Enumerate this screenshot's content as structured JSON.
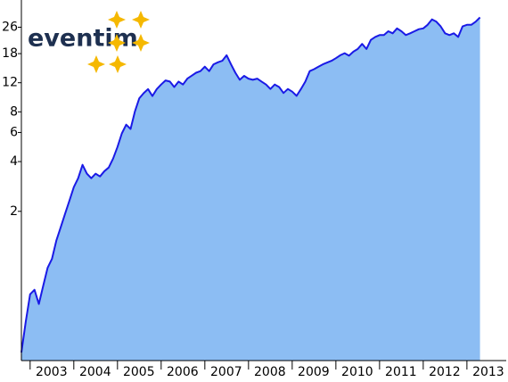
{
  "logo": "eventim",
  "chart_data": {
    "type": "area",
    "log_y": true,
    "line_color": "#1a1ae6",
    "fill_color": "#8cbdf3",
    "xlim": [
      2002.8,
      2013.9
    ],
    "ylim": [
      0.25,
      38
    ],
    "xticks": [
      2003,
      2004,
      2005,
      2006,
      2007,
      2008,
      2009,
      2010,
      2011,
      2012,
      2013
    ],
    "yticks": [
      2,
      4,
      6,
      8,
      12,
      18,
      26
    ],
    "x": [
      2002.8,
      2002.9,
      2003,
      2003.1,
      2003.2,
      2003.3,
      2003.4,
      2003.5,
      2003.6,
      2003.7,
      2003.8,
      2003.9,
      2004,
      2004.1,
      2004.2,
      2004.3,
      2004.4,
      2004.5,
      2004.6,
      2004.7,
      2004.8,
      2004.9,
      2005,
      2005.1,
      2005.2,
      2005.3,
      2005.4,
      2005.5,
      2005.6,
      2005.7,
      2005.8,
      2005.9,
      2006,
      2006.1,
      2006.2,
      2006.3,
      2006.4,
      2006.5,
      2006.6,
      2006.7,
      2006.8,
      2006.9,
      2007,
      2007.1,
      2007.2,
      2007.3,
      2007.4,
      2007.5,
      2007.6,
      2007.7,
      2007.8,
      2007.9,
      2008,
      2008.1,
      2008.2,
      2008.3,
      2008.4,
      2008.5,
      2008.6,
      2008.7,
      2008.8,
      2008.9,
      2009,
      2009.1,
      2009.2,
      2009.3,
      2009.4,
      2009.5,
      2009.6,
      2009.7,
      2009.8,
      2009.9,
      2010,
      2010.1,
      2010.2,
      2010.3,
      2010.4,
      2010.5,
      2010.6,
      2010.7,
      2010.8,
      2010.9,
      2011,
      2011.1,
      2011.2,
      2011.3,
      2011.4,
      2011.5,
      2011.6,
      2011.7,
      2011.8,
      2011.9,
      2012,
      2012.1,
      2012.2,
      2012.3,
      2012.4,
      2012.5,
      2012.6,
      2012.7,
      2012.8,
      2012.9,
      2013,
      2013.1,
      2013.2,
      2013.3
    ],
    "values": [
      0.28,
      0.43,
      0.63,
      0.67,
      0.55,
      0.71,
      0.91,
      1.03,
      1.33,
      1.6,
      1.93,
      2.32,
      2.8,
      3.17,
      3.82,
      3.38,
      3.17,
      3.38,
      3.25,
      3.5,
      3.68,
      4.17,
      4.9,
      5.92,
      6.69,
      6.3,
      8.05,
      9.67,
      10.37,
      10.99,
      9.97,
      10.99,
      11.7,
      12.4,
      12.2,
      11.3,
      12.2,
      11.7,
      12.7,
      13.24,
      13.8,
      14.1,
      15.0,
      14.1,
      15.5,
      15.95,
      16.3,
      17.6,
      15.5,
      13.8,
      12.5,
      13.2,
      12.7,
      12.5,
      12.7,
      12.2,
      11.7,
      11.0,
      11.7,
      11.3,
      10.4,
      11.0,
      10.6,
      10.0,
      11.0,
      12.2,
      14.1,
      14.5,
      15.0,
      15.5,
      15.9,
      16.3,
      16.9,
      17.6,
      18.1,
      17.5,
      18.5,
      19.2,
      20.6,
      19.2,
      21.8,
      22.7,
      23.3,
      23.3,
      24.6,
      23.9,
      25.6,
      24.6,
      23.3,
      23.9,
      24.6,
      25.3,
      25.6,
      26.9,
      29.0,
      28.1,
      26.3,
      23.9,
      23.3,
      23.9,
      22.7,
      26.3,
      26.9,
      26.9,
      28.1,
      29.8
    ]
  }
}
